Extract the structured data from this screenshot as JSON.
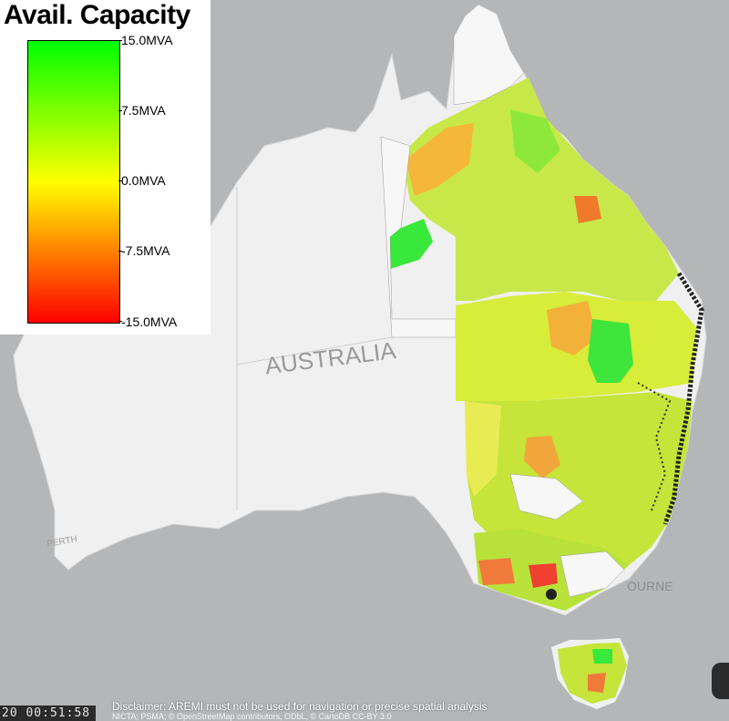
{
  "legend": {
    "title": "Avail. Capacity",
    "ticks": [
      "15.0MVA",
      "7.5MVA",
      "0.0MVA",
      "-7.5MVA",
      "-15.0MVA"
    ],
    "colors": {
      "max": "#00ff00",
      "mid": "#ffff00",
      "min": "#ff0000"
    }
  },
  "map": {
    "country_label": "AUSTRALIA",
    "city_labels": [
      "PERTH",
      "OURNE"
    ]
  },
  "footer": {
    "clock": "20  00:51:58",
    "disclaimer": "Disclaimer: AREMI must not be used for navigation or precise spatial analysis",
    "attribution": "NICTA; PSMA; © OpenStreetMap contributors, ODbL, © CartoDB CC-BY 3.0"
  }
}
